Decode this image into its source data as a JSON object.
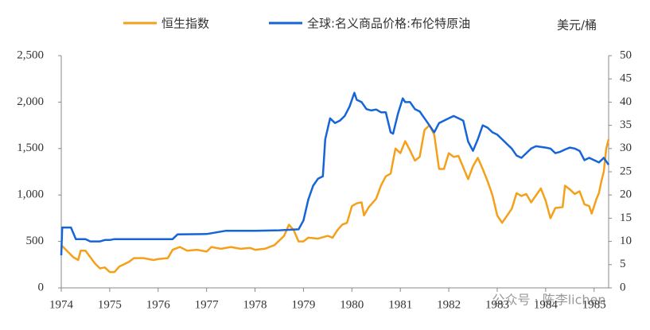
{
  "chart_data": {
    "type": "line",
    "y_axis_label": "美元/桶",
    "annotation": "公众号 · 陈李lichen",
    "xlim": [
      1974,
      1985.3
    ],
    "xticks": [
      1974,
      1975,
      1976,
      1977,
      1978,
      1979,
      1980,
      1981,
      1982,
      1983,
      1984,
      1985
    ],
    "ylim": [
      0,
      2500
    ],
    "yticks": [
      0,
      500,
      {
        "value": 1000,
        "label": "1,000"
      },
      {
        "value": 1500,
        "label": "1,500"
      },
      {
        "value": 2000,
        "label": "2,000"
      },
      {
        "value": 2500,
        "label": "2,500"
      }
    ],
    "y2lim": [
      0,
      50
    ],
    "y2ticks": [
      0,
      5,
      10,
      15,
      20,
      25,
      30,
      35,
      40,
      45,
      50
    ],
    "legend": "top",
    "series": [
      {
        "name": "恒生指数",
        "color": "#f5a01a",
        "axis": "y",
        "x": [
          1974.0,
          1974.25,
          1974.35,
          1974.4,
          1974.5,
          1974.7,
          1974.8,
          1974.9,
          1975.0,
          1975.1,
          1975.2,
          1975.4,
          1975.5,
          1975.7,
          1975.9,
          1976.0,
          1976.2,
          1976.3,
          1976.45,
          1976.6,
          1976.8,
          1977.0,
          1977.1,
          1977.3,
          1977.5,
          1977.7,
          1977.9,
          1978.0,
          1978.2,
          1978.4,
          1978.6,
          1978.7,
          1978.8,
          1978.9,
          1979.0,
          1979.1,
          1979.3,
          1979.5,
          1979.6,
          1979.7,
          1979.8,
          1979.9,
          1980.0,
          1980.1,
          1980.2,
          1980.25,
          1980.35,
          1980.5,
          1980.6,
          1980.7,
          1980.8,
          1980.9,
          1981.0,
          1981.1,
          1981.2,
          1981.3,
          1981.4,
          1981.5,
          1981.6,
          1981.7,
          1981.8,
          1981.9,
          1982.0,
          1982.1,
          1982.2,
          1982.4,
          1982.5,
          1982.6,
          1982.7,
          1982.8,
          1982.9,
          1983.0,
          1983.1,
          1983.3,
          1983.4,
          1983.5,
          1983.6,
          1983.7,
          1983.9,
          1984.0,
          1984.1,
          1984.2,
          1984.35,
          1984.4,
          1984.5,
          1984.6,
          1984.7,
          1984.8,
          1984.9,
          1984.95,
          1985.05,
          1985.1,
          1985.15,
          1985.2,
          1985.25,
          1985.3
        ],
        "values": [
          460,
          330,
          300,
          400,
          400,
          260,
          210,
          220,
          170,
          170,
          230,
          280,
          320,
          320,
          300,
          310,
          320,
          410,
          440,
          400,
          410,
          390,
          440,
          420,
          440,
          420,
          430,
          410,
          420,
          460,
          560,
          680,
          620,
          500,
          500,
          540,
          530,
          560,
          540,
          620,
          680,
          700,
          880,
          910,
          920,
          780,
          870,
          960,
          1100,
          1200,
          1230,
          1500,
          1450,
          1580,
          1480,
          1370,
          1410,
          1700,
          1750,
          1650,
          1280,
          1280,
          1450,
          1410,
          1420,
          1170,
          1310,
          1400,
          1280,
          1150,
          1000,
          780,
          700,
          850,
          1020,
          990,
          1010,
          920,
          1070,
          940,
          750,
          860,
          870,
          1100,
          1060,
          1010,
          1040,
          900,
          880,
          800,
          960,
          1020,
          1150,
          1250,
          1500,
          1600
        ]
      },
      {
        "name": "全球:名义商品价格:布伦特原油",
        "color": "#1565d8",
        "axis": "y2",
        "x": [
          1974.0,
          1974.02,
          1974.2,
          1974.3,
          1974.5,
          1974.6,
          1974.8,
          1974.9,
          1975.0,
          1975.1,
          1976.0,
          1976.3,
          1976.4,
          1977.0,
          1977.4,
          1977.8,
          1978.0,
          1978.5,
          1978.9,
          1979.0,
          1979.1,
          1979.2,
          1979.3,
          1979.4,
          1979.45,
          1979.55,
          1979.65,
          1979.75,
          1979.85,
          1979.95,
          1980.05,
          1980.1,
          1980.2,
          1980.3,
          1980.4,
          1980.5,
          1980.6,
          1980.7,
          1980.8,
          1980.85,
          1980.95,
          1981.05,
          1981.1,
          1981.2,
          1981.3,
          1981.4,
          1981.5,
          1981.6,
          1981.7,
          1981.8,
          1981.9,
          1982.0,
          1982.1,
          1982.2,
          1982.3,
          1982.4,
          1982.5,
          1982.6,
          1982.7,
          1982.8,
          1982.9,
          1983.0,
          1983.1,
          1983.2,
          1983.3,
          1983.4,
          1983.5,
          1983.6,
          1983.7,
          1983.8,
          1984.0,
          1984.1,
          1984.2,
          1984.3,
          1984.4,
          1984.5,
          1984.6,
          1984.7,
          1984.8,
          1984.9,
          1985.0,
          1985.1,
          1985.2,
          1985.3
        ],
        "values": [
          7,
          13,
          13,
          10.5,
          10.5,
          10,
          10,
          10.3,
          10.3,
          10.5,
          10.5,
          10.5,
          11.5,
          11.6,
          12.3,
          12.3,
          12.3,
          12.4,
          12.6,
          14.5,
          19,
          22,
          23.5,
          24,
          32,
          36.5,
          35.5,
          36,
          37,
          39,
          42,
          40.5,
          40,
          38.5,
          38.2,
          38.4,
          37.8,
          37.8,
          33.5,
          33.2,
          37.5,
          40.8,
          40,
          40,
          38.5,
          38,
          36.5,
          35,
          33.5,
          35.5,
          36,
          36.5,
          37,
          36.5,
          36,
          31.5,
          29.5,
          32,
          35,
          34.5,
          33.5,
          33,
          32,
          31,
          30,
          28.5,
          28,
          29,
          30,
          30.5,
          30.2,
          30,
          29,
          29.3,
          29.8,
          30.2,
          30,
          29.5,
          27.5,
          28,
          27.5,
          27,
          28,
          26.5
        ]
      }
    ]
  }
}
